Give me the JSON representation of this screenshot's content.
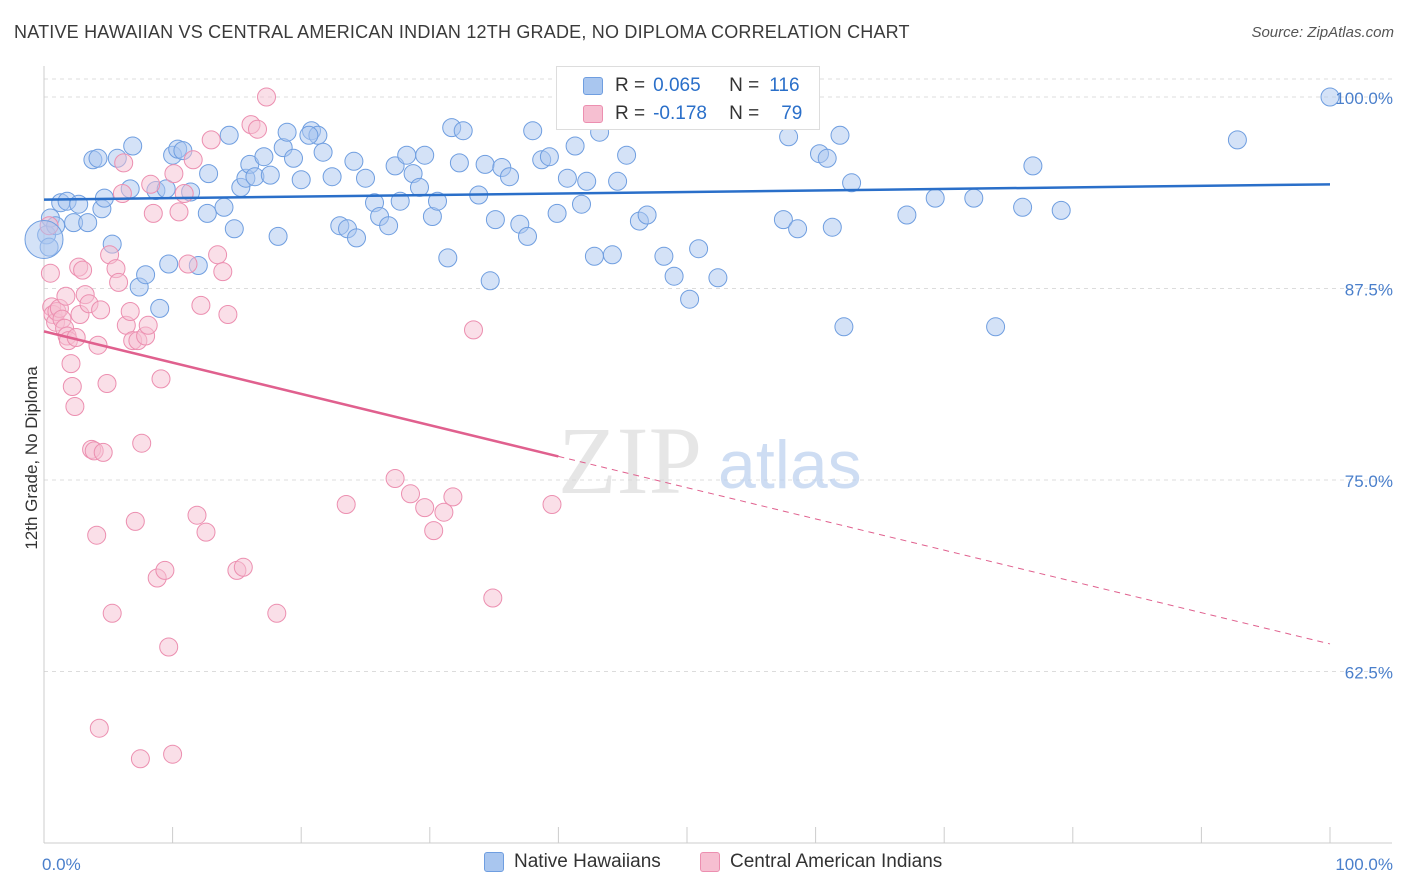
{
  "title": "NATIVE HAWAIIAN VS CENTRAL AMERICAN INDIAN 12TH GRADE, NO DIPLOMA CORRELATION CHART",
  "source": "Source: ZipAtlas.com",
  "watermark": {
    "zip": "ZIP",
    "atlas": "atlas"
  },
  "colors": {
    "blue_fill": "#a9c6ef",
    "blue_stroke": "#6f9ee0",
    "blue_line": "#2a6fc9",
    "pink_fill": "#f6bfd1",
    "pink_stroke": "#ec8fb0",
    "pink_line": "#e0608e",
    "axis_label": "#4a7fcb",
    "grid": "#dcdcdc"
  },
  "stats_legend": [
    {
      "r_label": "R =",
      "r_value": "0.065",
      "n_label": "N =",
      "n_value": "116",
      "color": "blue"
    },
    {
      "r_label": "R =",
      "r_value": "-0.178",
      "n_label": "N =",
      "n_value": "79",
      "color": "pink"
    }
  ],
  "legend": [
    {
      "label": "Native Hawaiians",
      "color": "blue"
    },
    {
      "label": "Central American Indians",
      "color": "pink"
    }
  ],
  "chart_data": {
    "type": "scatter",
    "title": "NATIVE HAWAIIAN VS CENTRAL AMERICAN INDIAN 12TH GRADE, NO DIPLOMA CORRELATION CHART",
    "ylabel": "12th Grade, No Diploma",
    "xlabel": "",
    "xlim": [
      0,
      100
    ],
    "ylim": [
      52,
      102
    ],
    "x_tick_labels": [
      {
        "value": 0,
        "label": "0.0%"
      },
      {
        "value": 100,
        "label": "100.0%"
      }
    ],
    "y_tick_labels": [
      {
        "value": 100,
        "label": "100.0%"
      },
      {
        "value": 87.5,
        "label": "87.5%"
      },
      {
        "value": 75,
        "label": "75.0%"
      },
      {
        "value": 62.5,
        "label": "62.5%"
      }
    ],
    "grid": true,
    "legend_position": "bottom",
    "series": [
      {
        "name": "Native Hawaiians",
        "color": "blue",
        "trend": {
          "x": [
            0,
            100
          ],
          "y": [
            93.3,
            94.3
          ],
          "dashed_from": null
        },
        "points": [
          [
            0.2,
            91.0
          ],
          [
            0.4,
            90.2
          ],
          [
            0.5,
            92.1
          ],
          [
            0.9,
            91.6
          ],
          [
            1.3,
            93.1
          ],
          [
            1.8,
            93.2
          ],
          [
            2.3,
            91.8
          ],
          [
            2.7,
            93.0
          ],
          [
            3.4,
            91.8
          ],
          [
            3.8,
            95.9
          ],
          [
            4.5,
            92.7
          ],
          [
            4.7,
            93.4
          ],
          [
            5.3,
            90.4
          ],
          [
            5.7,
            96.0
          ],
          [
            6.7,
            94.0
          ],
          [
            6.9,
            96.8
          ],
          [
            7.4,
            87.6
          ],
          [
            7.9,
            88.4
          ],
          [
            8.7,
            93.9
          ],
          [
            9.0,
            86.2
          ],
          [
            9.5,
            94.0
          ],
          [
            9.7,
            89.1
          ],
          [
            10.0,
            96.2
          ],
          [
            10.4,
            96.6
          ],
          [
            10.8,
            96.5
          ],
          [
            11.4,
            93.8
          ],
          [
            12.0,
            89.0
          ],
          [
            12.7,
            92.4
          ],
          [
            12.8,
            95.0
          ],
          [
            14.0,
            92.8
          ],
          [
            14.4,
            97.5
          ],
          [
            14.8,
            91.4
          ],
          [
            15.3,
            94.1
          ],
          [
            15.7,
            94.7
          ],
          [
            16.0,
            95.6
          ],
          [
            16.4,
            94.8
          ],
          [
            17.1,
            96.1
          ],
          [
            17.6,
            94.9
          ],
          [
            18.2,
            90.9
          ],
          [
            18.6,
            96.7
          ],
          [
            18.9,
            97.7
          ],
          [
            19.4,
            96.0
          ],
          [
            20.0,
            94.6
          ],
          [
            20.8,
            97.8
          ],
          [
            21.3,
            97.5
          ],
          [
            21.7,
            96.4
          ],
          [
            22.4,
            94.8
          ],
          [
            23.0,
            91.6
          ],
          [
            23.6,
            91.4
          ],
          [
            24.1,
            95.8
          ],
          [
            24.3,
            90.8
          ],
          [
            25.0,
            94.7
          ],
          [
            25.7,
            93.1
          ],
          [
            26.1,
            92.2
          ],
          [
            26.8,
            91.6
          ],
          [
            27.3,
            95.5
          ],
          [
            27.7,
            93.2
          ],
          [
            28.2,
            96.2
          ],
          [
            28.7,
            95.0
          ],
          [
            29.2,
            94.1
          ],
          [
            29.6,
            96.2
          ],
          [
            30.2,
            92.2
          ],
          [
            30.6,
            93.2
          ],
          [
            31.4,
            89.5
          ],
          [
            31.7,
            98.0
          ],
          [
            32.3,
            95.7
          ],
          [
            32.6,
            97.8
          ],
          [
            33.8,
            93.6
          ],
          [
            34.3,
            95.6
          ],
          [
            34.7,
            88.0
          ],
          [
            35.1,
            92.0
          ],
          [
            35.6,
            95.4
          ],
          [
            36.2,
            94.8
          ],
          [
            37.0,
            91.7
          ],
          [
            37.6,
            90.9
          ],
          [
            38.0,
            97.8
          ],
          [
            38.7,
            95.9
          ],
          [
            39.3,
            96.1
          ],
          [
            39.9,
            92.4
          ],
          [
            40.7,
            94.7
          ],
          [
            41.3,
            96.8
          ],
          [
            41.8,
            93.0
          ],
          [
            42.2,
            94.5
          ],
          [
            42.8,
            89.6
          ],
          [
            43.2,
            97.7
          ],
          [
            44.2,
            89.7
          ],
          [
            44.6,
            94.5
          ],
          [
            45.3,
            96.2
          ],
          [
            46.3,
            91.9
          ],
          [
            46.9,
            92.3
          ],
          [
            48.2,
            89.6
          ],
          [
            49.0,
            88.3
          ],
          [
            50.2,
            86.8
          ],
          [
            50.9,
            90.1
          ],
          [
            52.4,
            88.2
          ],
          [
            57.5,
            92.0
          ],
          [
            57.9,
            97.4
          ],
          [
            58.6,
            91.4
          ],
          [
            60.3,
            96.3
          ],
          [
            60.9,
            96.0
          ],
          [
            61.3,
            91.5
          ],
          [
            61.9,
            97.5
          ],
          [
            62.2,
            85.0
          ],
          [
            62.8,
            94.4
          ],
          [
            67.1,
            92.3
          ],
          [
            69.3,
            93.4
          ],
          [
            72.3,
            93.4
          ],
          [
            74.0,
            85.0
          ],
          [
            76.1,
            92.8
          ],
          [
            76.9,
            95.5
          ],
          [
            79.1,
            92.6
          ],
          [
            92.8,
            97.2
          ],
          [
            100.0,
            100.0
          ],
          [
            4.2,
            96.0
          ],
          [
            20.6,
            97.5
          ],
          [
            57.0,
            100.0
          ]
        ]
      },
      {
        "name": "Central American Indians",
        "color": "pink",
        "trend": {
          "x": [
            0,
            100
          ],
          "y": [
            84.7,
            64.3
          ],
          "dashed_from": 40
        },
        "points": [
          [
            0.4,
            91.6
          ],
          [
            0.5,
            88.5
          ],
          [
            0.6,
            86.3
          ],
          [
            0.7,
            85.8
          ],
          [
            0.9,
            85.3
          ],
          [
            1.0,
            86.0
          ],
          [
            1.2,
            86.2
          ],
          [
            1.4,
            85.5
          ],
          [
            1.6,
            84.9
          ],
          [
            1.7,
            87.0
          ],
          [
            1.8,
            84.4
          ],
          [
            1.9,
            84.1
          ],
          [
            2.1,
            82.6
          ],
          [
            2.2,
            81.1
          ],
          [
            2.4,
            79.8
          ],
          [
            2.5,
            84.3
          ],
          [
            2.7,
            88.9
          ],
          [
            2.8,
            85.8
          ],
          [
            3.0,
            88.7
          ],
          [
            3.2,
            87.1
          ],
          [
            3.5,
            86.5
          ],
          [
            3.7,
            77.0
          ],
          [
            3.9,
            76.9
          ],
          [
            4.1,
            71.4
          ],
          [
            4.2,
            83.8
          ],
          [
            4.4,
            86.1
          ],
          [
            4.6,
            76.8
          ],
          [
            4.9,
            81.3
          ],
          [
            5.1,
            89.7
          ],
          [
            5.3,
            66.3
          ],
          [
            5.6,
            88.8
          ],
          [
            5.8,
            87.9
          ],
          [
            6.1,
            93.7
          ],
          [
            6.2,
            95.7
          ],
          [
            6.4,
            85.1
          ],
          [
            6.7,
            86.0
          ],
          [
            6.9,
            84.1
          ],
          [
            7.1,
            72.3
          ],
          [
            7.3,
            84.1
          ],
          [
            7.6,
            77.4
          ],
          [
            7.9,
            84.4
          ],
          [
            8.1,
            85.1
          ],
          [
            8.3,
            94.3
          ],
          [
            8.5,
            92.4
          ],
          [
            8.8,
            68.6
          ],
          [
            9.1,
            81.6
          ],
          [
            9.4,
            69.1
          ],
          [
            9.7,
            64.1
          ],
          [
            10.1,
            95.0
          ],
          [
            10.5,
            92.5
          ],
          [
            10.9,
            93.7
          ],
          [
            11.2,
            89.1
          ],
          [
            11.6,
            95.9
          ],
          [
            11.9,
            72.7
          ],
          [
            12.2,
            86.4
          ],
          [
            12.6,
            71.6
          ],
          [
            13.0,
            97.2
          ],
          [
            13.5,
            89.7
          ],
          [
            13.9,
            88.6
          ],
          [
            14.3,
            85.8
          ],
          [
            15.0,
            69.1
          ],
          [
            15.5,
            69.3
          ],
          [
            16.1,
            98.2
          ],
          [
            16.6,
            97.9
          ],
          [
            17.3,
            100.0
          ],
          [
            18.1,
            66.3
          ],
          [
            23.5,
            73.4
          ],
          [
            27.3,
            75.1
          ],
          [
            28.5,
            74.1
          ],
          [
            29.6,
            73.2
          ],
          [
            30.3,
            71.7
          ],
          [
            31.1,
            72.9
          ],
          [
            31.8,
            73.9
          ],
          [
            33.4,
            84.8
          ],
          [
            34.9,
            67.3
          ],
          [
            39.5,
            73.4
          ],
          [
            4.3,
            58.8
          ],
          [
            7.5,
            56.8
          ],
          [
            10.0,
            57.1
          ]
        ]
      }
    ]
  }
}
